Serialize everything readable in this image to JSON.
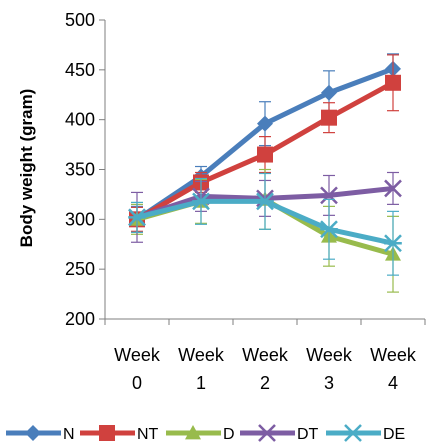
{
  "chart_data": {
    "type": "line",
    "title": "",
    "xlabel": "",
    "ylabel": "Body weight (gram)",
    "ylim": [
      200,
      500
    ],
    "yticks": [
      "200",
      "250",
      "300",
      "350",
      "400",
      "450",
      "500"
    ],
    "categories": [
      [
        "Week",
        "0"
      ],
      [
        "Week",
        "1"
      ],
      [
        "Week",
        "2"
      ],
      [
        "Week",
        "3"
      ],
      [
        "Week",
        "4"
      ]
    ],
    "grid": false,
    "legend_position": "bottom",
    "series": [
      {
        "name": "N",
        "color": "#4A7EBB",
        "marker": "diamond",
        "values": [
          300,
          343,
          396,
          427,
          451
        ],
        "errors": [
          13,
          10,
          22,
          22,
          15
        ]
      },
      {
        "name": "NT",
        "color": "#D0413E",
        "marker": "square",
        "values": [
          300,
          337,
          365,
          402,
          437
        ],
        "errors": [
          12,
          10,
          18,
          15,
          28
        ]
      },
      {
        "name": "D",
        "color": "#98BB4C",
        "marker": "triangle",
        "values": [
          300,
          318,
          320,
          283,
          265
        ],
        "errors": [
          15,
          22,
          30,
          30,
          38
        ]
      },
      {
        "name": "DT",
        "color": "#7D5DA3",
        "marker": "x",
        "values": [
          302,
          323,
          321,
          324,
          331
        ],
        "errors": [
          25,
          15,
          18,
          20,
          16
        ]
      },
      {
        "name": "DE",
        "color": "#4BACC6",
        "marker": "asterisk",
        "values": [
          302,
          318,
          318,
          290,
          276
        ],
        "errors": [
          15,
          23,
          28,
          30,
          32
        ]
      }
    ]
  }
}
